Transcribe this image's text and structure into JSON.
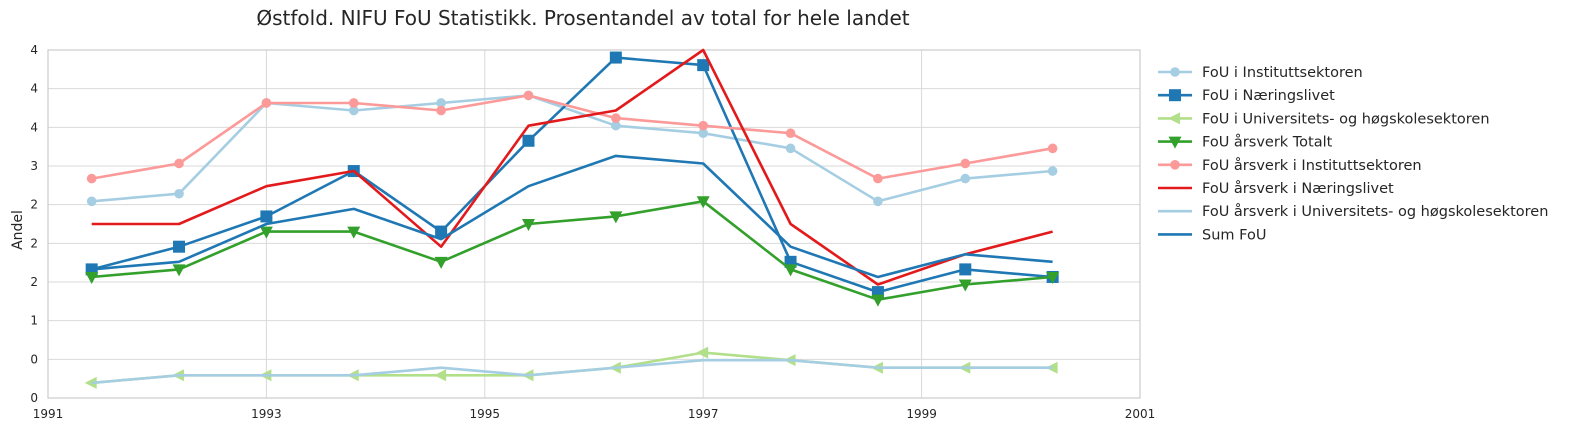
{
  "chart_data": {
    "type": "line",
    "title": "Østfold. NIFU FoU Statistikk. Prosentandel av total for hele landet",
    "xlabel": "",
    "ylabel": "Andel",
    "x_ticks": [
      "1991",
      "1993",
      "1995",
      "1997",
      "1999",
      "2001"
    ],
    "x_range": [
      1991,
      2001
    ],
    "y_ticks": [
      "0",
      "0",
      "1",
      "2",
      "2",
      "2",
      "3",
      "4",
      "4",
      "4"
    ],
    "y_range": [
      -0.1,
      4.5
    ],
    "grid": true,
    "legend_position": "outside-right",
    "x": [
      1991.4,
      1992.2,
      1993.0,
      1993.8,
      1994.6,
      1995.4,
      1996.2,
      1997.0,
      1997.8,
      1998.6,
      1999.4,
      2000.2
    ],
    "series": [
      {
        "name": "FoU i Instituttsektoren",
        "color": "#a6cee3",
        "marker": "circle",
        "values": [
          2.5,
          2.6,
          3.8,
          3.7,
          3.8,
          3.9,
          3.5,
          3.4,
          3.2,
          2.5,
          2.8,
          2.9
        ]
      },
      {
        "name": "FoU i Næringslivet",
        "color": "#1f78b4",
        "marker": "square",
        "values": [
          1.6,
          1.9,
          2.3,
          2.9,
          2.1,
          3.3,
          4.4,
          4.3,
          1.7,
          1.3,
          1.6,
          1.5
        ]
      },
      {
        "name": "FoU i Universitets- og høgskolesektoren",
        "color": "#b2df8a",
        "marker": "triangle-left",
        "values": [
          0.1,
          0.2,
          0.2,
          0.2,
          0.2,
          0.2,
          0.3,
          0.5,
          0.4,
          0.3,
          0.3,
          0.3
        ]
      },
      {
        "name": "FoU årsverk Totalt",
        "color": "#33a02c",
        "marker": "triangle-down",
        "values": [
          1.5,
          1.6,
          2.1,
          2.1,
          1.7,
          2.2,
          2.3,
          2.5,
          1.6,
          1.2,
          1.4,
          1.5
        ]
      },
      {
        "name": "FoU årsverk i Instituttsektoren",
        "color": "#fb9a99",
        "marker": "circle",
        "values": [
          2.8,
          3.0,
          3.8,
          3.8,
          3.7,
          3.9,
          3.6,
          3.5,
          3.4,
          2.8,
          3.0,
          3.2
        ]
      },
      {
        "name": "FoU årsverk i Næringslivet",
        "color": "#e31a1c",
        "marker": "none",
        "values": [
          2.2,
          2.2,
          2.7,
          2.9,
          1.9,
          3.5,
          3.7,
          4.5,
          2.2,
          1.4,
          1.8,
          2.1
        ]
      },
      {
        "name": "FoU årsverk i Universitets- og høgskolesektoren",
        "color": "#a6cee3",
        "marker": "none",
        "values": [
          0.1,
          0.2,
          0.2,
          0.2,
          0.3,
          0.2,
          0.3,
          0.4,
          0.4,
          0.3,
          0.3,
          0.3
        ]
      },
      {
        "name": "Sum FoU",
        "color": "#1f78b4",
        "marker": "none",
        "values": [
          1.6,
          1.7,
          2.2,
          2.4,
          2.0,
          2.7,
          3.1,
          3.0,
          1.9,
          1.5,
          1.8,
          1.7
        ]
      }
    ]
  }
}
